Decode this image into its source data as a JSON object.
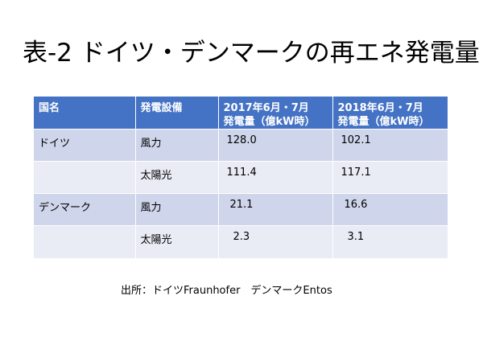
{
  "title": "表-2 ドイツ・デンマークの再エネ発電量",
  "table": {
    "headers": [
      "国名",
      "発電設備",
      "2017年6月・7月\n発電量（億kW時）",
      "2018年6月・7月\n発電量（億kW時）"
    ],
    "rows": [
      [
        "ドイツ",
        "風力",
        "128.0",
        "102.1"
      ],
      [
        "",
        "太陽光",
        "111.4",
        "117.1"
      ],
      [
        "デンマーク",
        "風力",
        "21.1",
        "16.6"
      ],
      [
        "",
        "太陽光",
        "2.3",
        "3.1"
      ]
    ]
  },
  "source": "出所：ドイツFraunhofer　デンマークEntos"
}
